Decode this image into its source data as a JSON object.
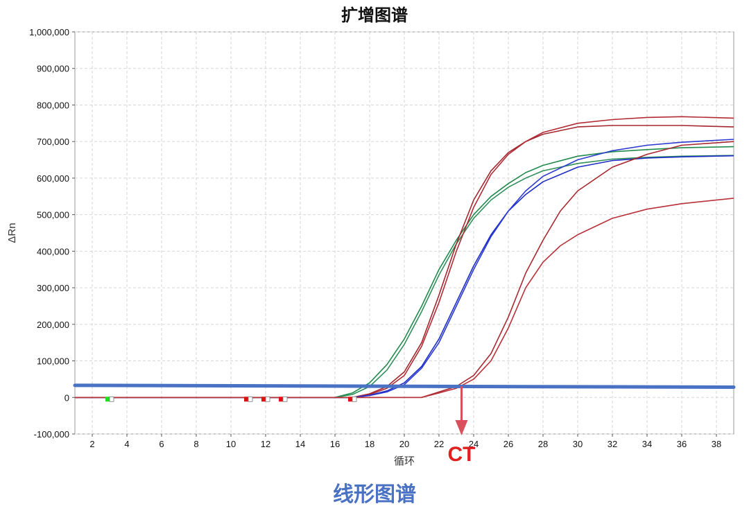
{
  "chart_data": {
    "type": "line",
    "title": "扩增图谱",
    "xlabel": "循环",
    "ylabel": "ΔRn",
    "xlim": [
      1,
      39
    ],
    "ylim": [
      -100000,
      1000000
    ],
    "xticks": [
      2,
      4,
      6,
      8,
      10,
      12,
      14,
      16,
      18,
      20,
      22,
      24,
      26,
      28,
      30,
      32,
      34,
      36,
      38
    ],
    "yticks": [
      -100000,
      0,
      100000,
      200000,
      300000,
      400000,
      500000,
      600000,
      700000,
      800000,
      900000,
      1000000
    ],
    "ytick_labels": [
      "-100,000",
      "0",
      "100,000",
      "200,000",
      "300,000",
      "400,000",
      "500,000",
      "600,000",
      "700,000",
      "800,000",
      "900,000",
      "1,000,000"
    ],
    "grid": true,
    "series": [
      {
        "color": "#1f8a4c",
        "x": [
          1,
          16,
          17,
          18,
          19,
          20,
          21,
          22,
          23,
          24,
          25,
          26,
          27,
          28,
          30,
          32,
          34,
          36,
          39
        ],
        "y": [
          0,
          0,
          12000,
          40000,
          90000,
          160000,
          250000,
          350000,
          430000,
          500000,
          550000,
          585000,
          615000,
          635000,
          660000,
          672000,
          678000,
          683000,
          686000
        ]
      },
      {
        "color": "#2f8f5a",
        "x": [
          1,
          16,
          17,
          18,
          19,
          20,
          21,
          22,
          23,
          24,
          25,
          26,
          27,
          28,
          30,
          32,
          34,
          36,
          39
        ],
        "y": [
          0,
          0,
          8000,
          30000,
          75000,
          145000,
          235000,
          335000,
          420000,
          490000,
          540000,
          575000,
          600000,
          620000,
          640000,
          652000,
          657000,
          660000,
          662000
        ]
      },
      {
        "color": "#a3262e",
        "x": [
          1,
          17,
          18,
          19,
          20,
          21,
          22,
          23,
          24,
          25,
          26,
          27,
          28,
          30,
          32,
          34,
          36,
          39
        ],
        "y": [
          0,
          0,
          10000,
          30000,
          70000,
          150000,
          280000,
          420000,
          540000,
          620000,
          670000,
          700000,
          720000,
          740000,
          744000,
          744000,
          744000,
          740000
        ]
      },
      {
        "color": "#b02a34",
        "x": [
          1,
          17,
          18,
          19,
          20,
          21,
          22,
          23,
          24,
          25,
          26,
          27,
          28,
          30,
          32,
          34,
          36,
          39
        ],
        "y": [
          0,
          0,
          8000,
          25000,
          60000,
          140000,
          260000,
          400000,
          520000,
          610000,
          665000,
          700000,
          725000,
          750000,
          760000,
          766000,
          768000,
          764000
        ]
      },
      {
        "color": "#1c2cc4",
        "x": [
          1,
          17,
          18,
          19,
          20,
          21,
          22,
          23,
          24,
          25,
          26,
          27,
          28,
          30,
          32,
          34,
          36,
          39
        ],
        "y": [
          0,
          0,
          6000,
          18000,
          40000,
          85000,
          160000,
          260000,
          360000,
          445000,
          510000,
          555000,
          590000,
          630000,
          648000,
          655000,
          658000,
          661000
        ]
      },
      {
        "color": "#2a3ad0",
        "x": [
          1,
          17,
          18,
          19,
          20,
          21,
          22,
          23,
          24,
          25,
          26,
          27,
          28,
          30,
          32,
          34,
          36,
          39
        ],
        "y": [
          0,
          0,
          5000,
          15000,
          35000,
          80000,
          150000,
          250000,
          350000,
          440000,
          510000,
          565000,
          605000,
          650000,
          675000,
          690000,
          698000,
          706000
        ]
      },
      {
        "color": "#a8282f",
        "x": [
          1,
          21,
          22,
          23,
          24,
          25,
          26,
          27,
          28,
          29,
          30,
          32,
          34,
          36,
          39
        ],
        "y": [
          0,
          0,
          15000,
          30000,
          60000,
          120000,
          220000,
          340000,
          430000,
          510000,
          565000,
          630000,
          665000,
          690000,
          700000
        ]
      },
      {
        "color": "#b83038",
        "x": [
          1,
          21,
          22,
          23,
          24,
          25,
          26,
          27,
          28,
          29,
          30,
          32,
          34,
          36,
          39
        ],
        "y": [
          0,
          0,
          12000,
          25000,
          50000,
          100000,
          190000,
          300000,
          370000,
          415000,
          445000,
          490000,
          515000,
          530000,
          545000
        ]
      }
    ],
    "threshold": {
      "color": "#4a72c4",
      "y_start": 33000,
      "y_end": 28000
    },
    "markers": [
      {
        "x": 3.0,
        "color": "#22dd22"
      },
      {
        "x": 11.0,
        "color": "#dd1111"
      },
      {
        "x": 12.0,
        "color": "#dd1111"
      },
      {
        "x": 13.0,
        "color": "#dd1111"
      },
      {
        "x": 17.0,
        "color": "#dd1111"
      }
    ],
    "ct_annotation": {
      "label": "CT",
      "x": 23.3,
      "color": "#d9505a"
    }
  },
  "footer_label": "线形图谱"
}
